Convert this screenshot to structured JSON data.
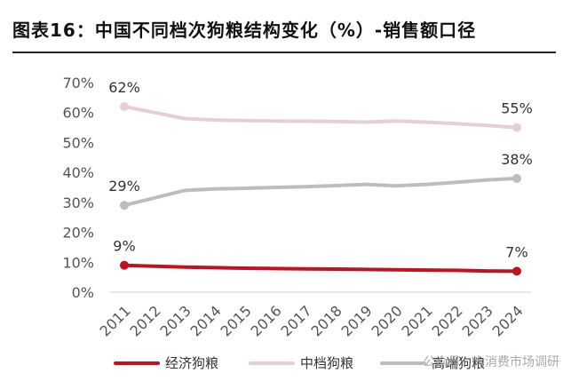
{
  "title": "图表16：中国不同档次狗粮结构变化（%）-销售额口径",
  "watermark": "公众号 · 大消费市场调研",
  "chart_data": {
    "type": "line",
    "title": "图表16：中国不同档次狗粮结构变化（%）-销售额口径",
    "x": [
      "2011",
      "2012",
      "2013",
      "2014",
      "2015",
      "2016",
      "2017",
      "2018",
      "2019",
      "2020",
      "2021",
      "2022",
      "2023",
      "2024"
    ],
    "ylim": [
      0,
      70
    ],
    "yticks": [
      "0%",
      "10%",
      "20%",
      "30%",
      "40%",
      "50%",
      "60%",
      "70%"
    ],
    "ytick_values": [
      0,
      10,
      20,
      30,
      40,
      50,
      60,
      70
    ],
    "grid": false,
    "legend_position": "bottom",
    "series": [
      {
        "name": "经济狗粮",
        "color": "#c0121f",
        "values": [
          9,
          8.7,
          8.4,
          8.2,
          8.0,
          7.9,
          7.8,
          7.7,
          7.6,
          7.5,
          7.4,
          7.3,
          7.1,
          7
        ],
        "labels": [
          {
            "index": 0,
            "text": "9%"
          },
          {
            "index": 13,
            "text": "7%"
          }
        ]
      },
      {
        "name": "中档狗粮",
        "color": "#e8cfcf",
        "values": [
          62,
          60,
          58,
          57.5,
          57.3,
          57.2,
          57.1,
          57.0,
          56.8,
          57.2,
          56.8,
          56.3,
          55.7,
          55
        ],
        "labels": [
          {
            "index": 0,
            "text": "62%"
          },
          {
            "index": 13,
            "text": "55%"
          }
        ]
      },
      {
        "name": "高端狗粮",
        "color": "#bdbdbd",
        "values": [
          29,
          31.5,
          34,
          34.5,
          34.7,
          35,
          35.2,
          35.6,
          36,
          35.5,
          36,
          36.7,
          37.5,
          38
        ],
        "labels": [
          {
            "index": 0,
            "text": "29%"
          },
          {
            "index": 13,
            "text": "38%"
          }
        ]
      }
    ]
  }
}
